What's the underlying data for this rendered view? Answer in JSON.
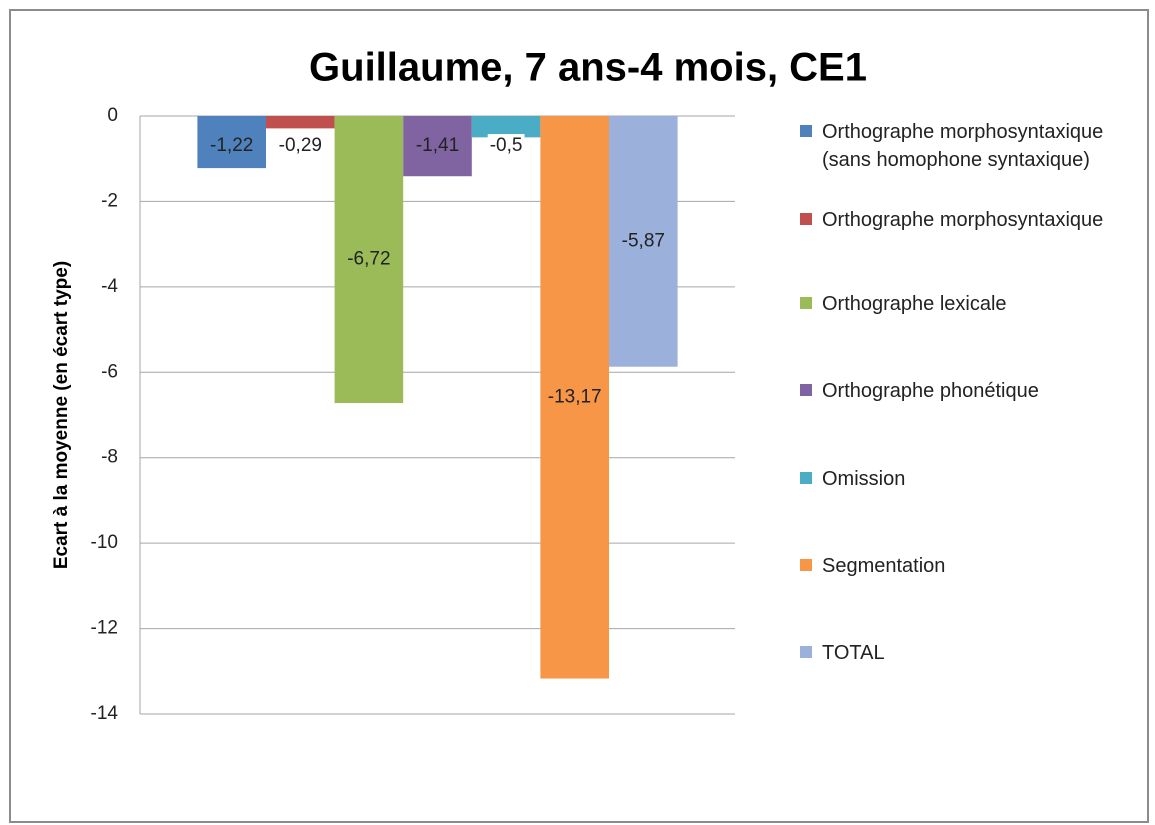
{
  "chart_data": {
    "type": "bar",
    "title": "Guillaume, 7 ans-4 mois, CE1",
    "y_label": "Ecart à la moyenne (en écart type)",
    "categories": [
      null
    ],
    "series": [
      {
        "name": "Orthographe morphosyntaxique (sans homophone syntaxique)",
        "color": "#4f81bd",
        "values": [
          -1.22
        ],
        "value_labels": [
          "-1,22"
        ]
      },
      {
        "name": "Orthographe morphosyntaxique",
        "color": "#c0504d",
        "values": [
          -0.29
        ],
        "value_labels": [
          "-0,29"
        ]
      },
      {
        "name": "Orthographe lexicale",
        "color": "#9bbb59",
        "values": [
          -6.72
        ],
        "value_labels": [
          "-6,72"
        ]
      },
      {
        "name": "Orthographe phonétique",
        "color": "#8064a2",
        "values": [
          -1.41
        ],
        "value_labels": [
          "-1,41"
        ]
      },
      {
        "name": "Omission",
        "color": "#4bacc6",
        "values": [
          -0.5
        ],
        "value_labels": [
          "-0,5"
        ]
      },
      {
        "name": "Segmentation",
        "color": "#f79646",
        "values": [
          -13.17
        ],
        "value_labels": [
          "-13,17"
        ]
      },
      {
        "name": "TOTAL",
        "color": "#9bb1db",
        "values": [
          -5.87
        ],
        "value_labels": [
          "-5,87"
        ]
      }
    ],
    "ylim": [
      -14,
      0
    ],
    "yticks": [
      0,
      -2,
      -4,
      -6,
      -8,
      -10,
      -12,
      -14
    ],
    "grid": true,
    "legend": "right"
  }
}
